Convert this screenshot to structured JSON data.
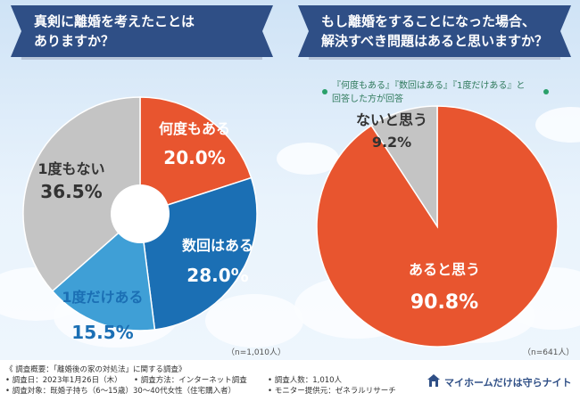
{
  "left_question": [
    "真剣に離婚を考えたことは",
    "ありますか？"
  ],
  "right_question": [
    "もし離婚をすることになった場合、",
    "解決すべき問題はあると思いますか？"
  ],
  "right_note": [
    "『何度もある』『数回はある』『1度だけある』と",
    "回答した方が回答"
  ],
  "left_n": "（n=1,010人）",
  "right_n": "（n=641人）",
  "chart_data": [
    {
      "type": "pie",
      "title": "真剣に離婚を考えたことはありますか？",
      "donut": true,
      "slices": [
        {
          "label": "何度もある",
          "value": 20.0,
          "value_text": "20.0%",
          "color": "#e8552f"
        },
        {
          "label": "数回はある",
          "value": 28.0,
          "value_text": "28.0%",
          "color": "#1b6fb4"
        },
        {
          "label": "1度だけある",
          "value": 15.5,
          "value_text": "15.5%",
          "color": "#3f9fd6"
        },
        {
          "label": "1度もない",
          "value": 36.5,
          "value_text": "36.5%",
          "color": "#c4c4c4"
        }
      ]
    },
    {
      "type": "pie",
      "title": "もし離婚をすることになった場合、解決すべき問題はあると思いますか？",
      "donut": false,
      "slices": [
        {
          "label": "あると思う",
          "value": 90.8,
          "value_text": "90.8%",
          "color": "#e8552f"
        },
        {
          "label": "ないと思う",
          "value": 9.2,
          "value_text": "9.2%",
          "color": "#c4c4c4"
        }
      ]
    }
  ],
  "footer": {
    "line1": "《 調査概要：「離婚後の家の対処法」に関する調査》",
    "items": [
      "• 調査日：2023年1月26日（木）",
      "• 調査方法：インターネット調査",
      "• 調査人数：1,010人",
      "• 調査対象：既婚子持ち（6～15歳）30～40代女性（住宅購入者）",
      "• モニター提供元：ゼネラルリサーチ"
    ],
    "logo_text": "マイホームだけは守らナイト"
  }
}
